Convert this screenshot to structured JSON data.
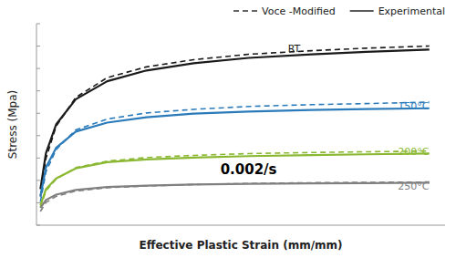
{
  "chart_data": {
    "type": "line",
    "x_label": "Effective Plastic Strain (mm/mm)",
    "y_label": "Stress (Mpa)",
    "x": [
      0.005,
      0.012,
      0.025,
      0.05,
      0.09,
      0.14,
      0.2,
      0.27,
      0.35,
      0.42,
      0.5
    ],
    "series": [
      {
        "name": "Experimental",
        "line_style": "solid",
        "color": "#1a1a1a",
        "values": [
          100,
          200,
          280,
          350,
          400,
          430,
          450,
          465,
          475,
          482,
          488
        ]
      },
      {
        "name": "Voce -Modified",
        "line_style": "dashed",
        "color": "#1a1a1a",
        "values": [
          80,
          185,
          275,
          355,
          410,
          440,
          460,
          475,
          485,
          492,
          498
        ]
      },
      {
        "name": "Experimental",
        "line_style": "solid",
        "color": "#2b7bba",
        "values": [
          80,
          160,
          215,
          260,
          285,
          300,
          310,
          316,
          320,
          323,
          325
        ]
      },
      {
        "name": "Voce -Modified",
        "line_style": "dashed",
        "color": "#2b7bba",
        "values": [
          65,
          148,
          210,
          265,
          295,
          312,
          322,
          330,
          335,
          338,
          342
        ]
      },
      {
        "name": "Experimental",
        "line_style": "solid",
        "color": "#8ab832",
        "values": [
          55,
          100,
          130,
          158,
          175,
          183,
          188,
          192,
          195,
          197,
          199
        ]
      },
      {
        "name": "Voce -Modified",
        "line_style": "dashed",
        "color": "#8ab832",
        "values": [
          50,
          95,
          128,
          160,
          178,
          188,
          194,
          199,
          202,
          204,
          206
        ]
      },
      {
        "name": "Experimental",
        "line_style": "solid",
        "color": "#808080",
        "values": [
          48,
          70,
          85,
          98,
          106,
          110,
          113,
          115,
          116,
          117,
          118
        ]
      },
      {
        "name": "Voce -Modified",
        "line_style": "dashed",
        "color": "#808080",
        "values": [
          38,
          63,
          80,
          95,
          104,
          109,
          113,
          116,
          118,
          119,
          120
        ]
      }
    ],
    "annotations": [
      {
        "text": "RT",
        "x": 0.32,
        "y": 490,
        "color": "#1a1a1a"
      },
      {
        "text": "150°C",
        "x": 0.46,
        "y": 330,
        "color": "#2b7bba"
      },
      {
        "text": "200°C",
        "x": 0.46,
        "y": 204,
        "color": "#8ab832"
      },
      {
        "text": "250°C",
        "x": 0.46,
        "y": 108,
        "color": "#808080"
      },
      {
        "text": "0.002/s",
        "x": 0.27,
        "y": 155
      }
    ],
    "xlim": [
      0.0,
      0.52
    ],
    "ylim": [
      0,
      560
    ],
    "yticks": [
      0,
      62.22222222222222,
      124.44444444444444,
      186.66666666666666,
      248.88888888888889,
      311.1111111111111,
      373.3333333333333,
      435.55555555555554,
      497.77777777777777,
      560
    ],
    "tick_labels": false,
    "grid": false,
    "legend": "upper right"
  }
}
